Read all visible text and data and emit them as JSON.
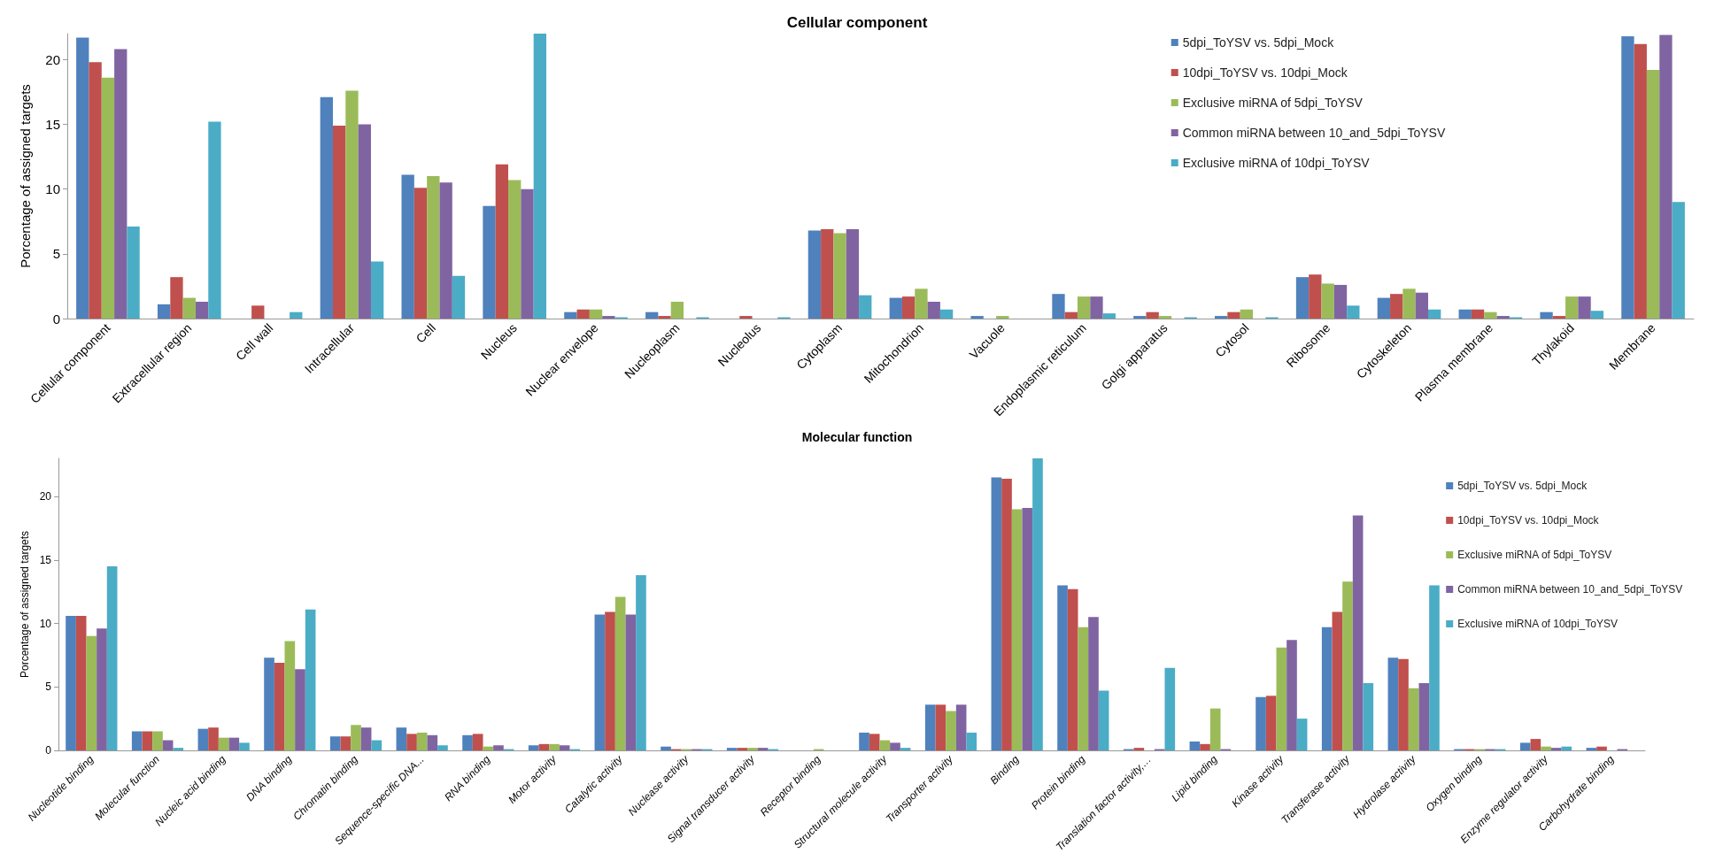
{
  "chart_data": [
    {
      "type": "bar",
      "title": "Cellular component",
      "ylabel": "Porcentage of assigned targets",
      "categories": [
        "Cellular component",
        "Extracellular region",
        "Cell wall",
        "Intracellular",
        "Cell",
        "Nucleus",
        "Nuclear envelope",
        "Nucleoplasm",
        "Nucleolus",
        "Cytoplasm",
        "Mitochondrion",
        "Vacuole",
        "Endoplasmic reticulum",
        "Golgi apparatus",
        "Cytosol",
        "Ribosome",
        "Cytoskeleton",
        "Plasma membrane",
        "Thylakoid",
        "Membrane"
      ],
      "ylim": [
        0,
        22
      ],
      "yticks": [
        0,
        5,
        10,
        15,
        20
      ],
      "grid": false,
      "legend": "top right",
      "series": [
        {
          "name": "5dpi_ToYSV vs. 5dpi_Mock",
          "color": "#4f81bd",
          "values": [
            21.7,
            1.1,
            0,
            17.1,
            11.1,
            8.7,
            0.5,
            0.5,
            0,
            6.8,
            1.6,
            0.2,
            1.9,
            0.2,
            0.2,
            3.2,
            1.6,
            0.7,
            0.5,
            21.8
          ]
        },
        {
          "name": "10dpi_ToYSV vs. 10dpi_Mock",
          "color": "#c0504d",
          "values": [
            19.8,
            3.2,
            1.0,
            14.9,
            10.1,
            11.9,
            0.7,
            0.2,
            0.2,
            6.9,
            1.7,
            0,
            0.5,
            0.5,
            0.5,
            3.4,
            1.9,
            0.7,
            0.2,
            21.2
          ]
        },
        {
          "name": "Exclusive miRNA of 5dpi_ToYSV",
          "color": "#9bbb59",
          "values": [
            18.6,
            1.6,
            0,
            17.6,
            11.0,
            10.7,
            0.7,
            1.3,
            0,
            6.6,
            2.3,
            0.2,
            1.7,
            0.2,
            0.7,
            2.7,
            2.3,
            0.5,
            1.7,
            19.2
          ]
        },
        {
          "name": "Common miRNA between 10_and_5dpi_ToYSV",
          "color": "#8064a2",
          "values": [
            20.8,
            1.3,
            0,
            15.0,
            10.5,
            10.0,
            0.2,
            0,
            0,
            6.9,
            1.3,
            0,
            1.7,
            0,
            0,
            2.6,
            2.0,
            0.2,
            1.7,
            21.9
          ]
        },
        {
          "name": "Exclusive miRNA of 10dpi_ToYSV",
          "color": "#4bacc6",
          "values": [
            7.1,
            15.2,
            0.5,
            4.4,
            3.3,
            22,
            0.1,
            0.1,
            0.1,
            1.8,
            0.7,
            0,
            0.4,
            0.1,
            0.1,
            1.0,
            0.7,
            0.1,
            0.6,
            9.0
          ]
        }
      ]
    },
    {
      "type": "bar",
      "title": "Molecular function",
      "ylabel": "Porcentage of assigned targets",
      "categories": [
        "Nucleotide binding",
        "Molecular function",
        "Nucleic acid binding",
        "DNA binding",
        "Chromatin binding",
        "Sequence-specific DNA...",
        "RNA binding",
        "Motor activity",
        "Catalytic activity",
        "Nuclease activity",
        "Signal transducer activity",
        "Receptor binding",
        "Structural molecule activity",
        "Transporter activity",
        "Binding",
        "Protein binding",
        "Translation factor activity,…",
        "Lipid binding",
        "Kinase activity",
        "Transferase activity",
        "Hydrolase activity",
        "Oxygen binding",
        "Enzyme regulator activity",
        "Carbohydrate binding"
      ],
      "ylim": [
        0,
        23
      ],
      "yticks": [
        0,
        5,
        10,
        15,
        20
      ],
      "grid": false,
      "legend": "top right",
      "series": [
        {
          "name": "5dpi_ToYSV vs. 5dpi_Mock",
          "color": "#4f81bd",
          "values": [
            10.6,
            1.5,
            1.7,
            7.3,
            1.1,
            1.8,
            1.2,
            0.4,
            10.7,
            0.3,
            0.2,
            0,
            1.4,
            3.6,
            21.5,
            13.0,
            0.1,
            0.7,
            4.2,
            9.7,
            7.3,
            0.1,
            0.6,
            0.2
          ]
        },
        {
          "name": "10dpi_ToYSV vs. 10dpi_Mock",
          "color": "#c0504d",
          "values": [
            10.6,
            1.5,
            1.8,
            6.9,
            1.1,
            1.3,
            1.3,
            0.5,
            10.9,
            0.1,
            0.2,
            0,
            1.3,
            3.6,
            21.4,
            12.7,
            0.2,
            0.5,
            4.3,
            10.9,
            7.2,
            0.1,
            0.9,
            0.3
          ]
        },
        {
          "name": "Exclusive miRNA of 5dpi_ToYSV",
          "color": "#9bbb59",
          "values": [
            9.0,
            1.5,
            1.0,
            8.6,
            2.0,
            1.4,
            0.3,
            0.5,
            12.1,
            0.1,
            0.2,
            0.1,
            0.8,
            3.1,
            19.0,
            9.7,
            0,
            3.3,
            8.1,
            13.3,
            4.9,
            0.1,
            0.3,
            0
          ]
        },
        {
          "name": "Common miRNA between 10_and_5dpi_ToYSV",
          "color": "#8064a2",
          "values": [
            9.6,
            0.8,
            1.0,
            6.4,
            1.8,
            1.2,
            0.4,
            0.4,
            10.7,
            0.1,
            0.2,
            0,
            0.6,
            3.6,
            19.1,
            10.5,
            0.1,
            0.1,
            8.7,
            18.5,
            5.3,
            0.1,
            0.2,
            0.1
          ]
        },
        {
          "name": "Exclusive miRNA of 10dpi_ToYSV",
          "color": "#4bacc6",
          "values": [
            14.5,
            0.2,
            0.6,
            11.1,
            0.8,
            0.4,
            0.1,
            0.1,
            13.8,
            0.1,
            0.1,
            0,
            0.2,
            1.4,
            23,
            4.7,
            6.5,
            0,
            2.5,
            5.3,
            13.0,
            0.1,
            0.3,
            0
          ]
        }
      ]
    }
  ]
}
